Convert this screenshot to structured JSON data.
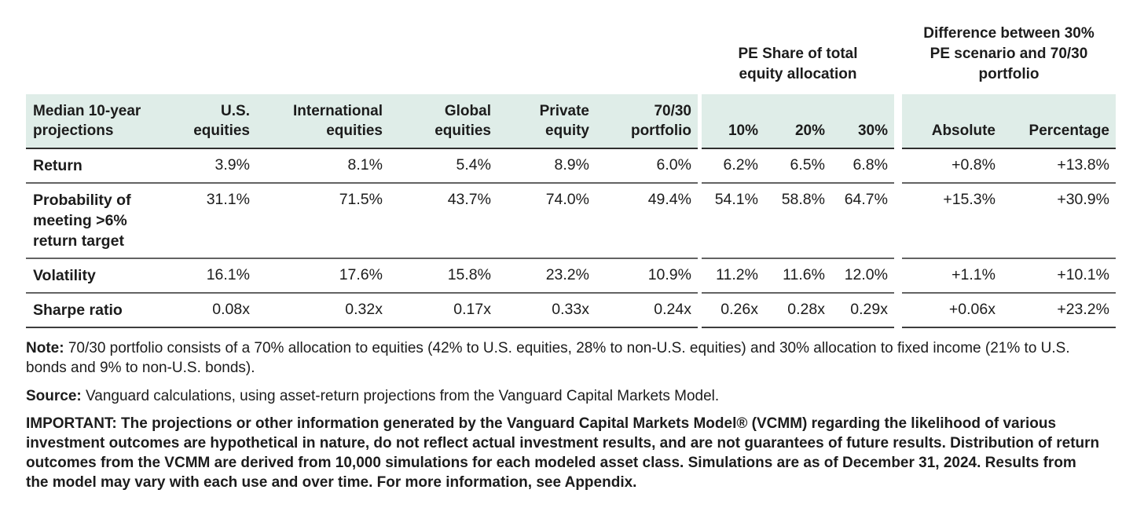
{
  "colors": {
    "header_band_bg": "#dfede8",
    "header_rule": "#2f2f2f",
    "row_rule": "#636363",
    "text": "#1c1c1c"
  },
  "group_headers": {
    "pe_share": "PE Share of total equity allocation",
    "difference": "Difference between 30% PE scenario and 70/30 portfolio"
  },
  "table": {
    "row_header_title": "Median 10-year projections",
    "columns": [
      "U.S. equities",
      "International equities",
      "Global equities",
      "Private equity",
      "70/30 portfolio",
      "10%",
      "20%",
      "30%",
      "Absolute",
      "Percentage"
    ],
    "rows": [
      {
        "label": "Return",
        "values": [
          "3.9%",
          "8.1%",
          "5.4%",
          "8.9%",
          "6.0%",
          "6.2%",
          "6.5%",
          "6.8%",
          "+0.8%",
          "+13.8%"
        ]
      },
      {
        "label": "Probability of meeting >6% return target",
        "values": [
          "31.1%",
          "71.5%",
          "43.7%",
          "74.0%",
          "49.4%",
          "54.1%",
          "58.8%",
          "64.7%",
          "+15.3%",
          "+30.9%"
        ]
      },
      {
        "label": "Volatility",
        "values": [
          "16.1%",
          "17.6%",
          "15.8%",
          "23.2%",
          "10.9%",
          "11.2%",
          "11.6%",
          "12.0%",
          "+1.1%",
          "+10.1%"
        ]
      },
      {
        "label": "Sharpe ratio",
        "values": [
          "0.08x",
          "0.32x",
          "0.17x",
          "0.33x",
          "0.24x",
          "0.26x",
          "0.28x",
          "0.29x",
          "+0.06x",
          "+23.2%"
        ]
      }
    ]
  },
  "notes": {
    "note_label": "Note:",
    "note_text": " 70/30 portfolio consists of a 70% allocation to equities (42% to U.S. equities, 28% to non-U.S. equities) and 30% allocation to fixed income (21% to U.S. bonds and 9% to non-U.S. bonds).",
    "source_label": "Source:",
    "source_text": " Vanguard calculations, using asset-return projections from the Vanguard Capital Markets Model.",
    "important_text": "IMPORTANT: The projections or other information generated by the Vanguard Capital Markets Model® (VCMM) regarding the likelihood of various investment outcomes are hypothetical in nature, do not reflect actual investment results, and are not guarantees of future results. Distribution of return outcomes from the VCMM are derived from 10,000 simulations for each modeled asset class. Simulations are as of December 31, 2024. Results from the model may vary with each use and over time. For more information, see Appendix."
  }
}
